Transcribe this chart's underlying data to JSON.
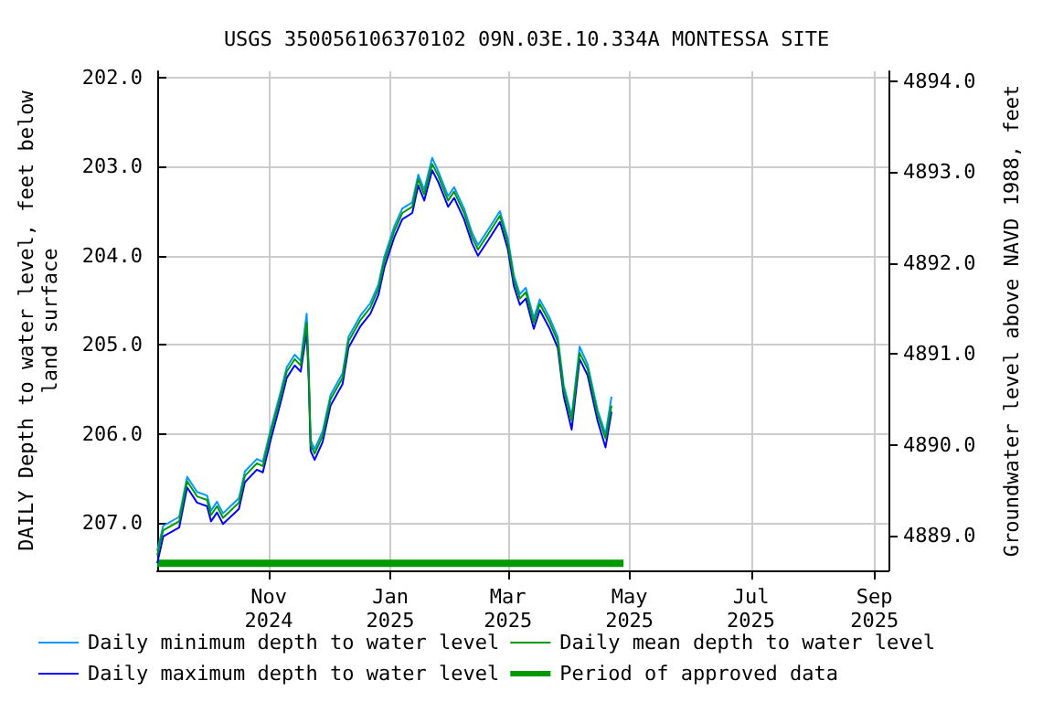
{
  "chart_data": {
    "type": "line",
    "title": "USGS 350056106370102 09N.03E.10.334A MONTESSA SITE",
    "ylabel": "DAILY Depth to water level, feet below\nland surface",
    "y2label": "Groundwater level above NAVD 1988, feet",
    "x": [
      "2024-09-06",
      "2024-09-09",
      "2024-09-17",
      "2024-09-21",
      "2024-09-26",
      "2024-10-01",
      "2024-10-03",
      "2024-10-06",
      "2024-10-09",
      "2024-10-17",
      "2024-10-20",
      "2024-10-26",
      "2024-10-29",
      "2024-11-02",
      "2024-11-07",
      "2024-11-10",
      "2024-11-14",
      "2024-11-17",
      "2024-11-20",
      "2024-11-21",
      "2024-11-22",
      "2024-11-24",
      "2024-11-28",
      "2024-12-02",
      "2024-12-08",
      "2024-12-11",
      "2024-12-17",
      "2024-12-22",
      "2024-12-26",
      "2024-12-29",
      "2025-01-03",
      "2025-01-07",
      "2025-01-12",
      "2025-01-15",
      "2025-01-18",
      "2025-01-22",
      "2025-01-25",
      "2025-01-30",
      "2025-02-02",
      "2025-02-07",
      "2025-02-11",
      "2025-02-14",
      "2025-02-19",
      "2025-02-25",
      "2025-03-01",
      "2025-03-04",
      "2025-03-07",
      "2025-03-10",
      "2025-03-14",
      "2025-03-17",
      "2025-03-22",
      "2025-03-26",
      "2025-03-29",
      "2025-04-02",
      "2025-04-06",
      "2025-04-10",
      "2025-04-15",
      "2025-04-19",
      "2025-04-22"
    ],
    "series": [
      {
        "name": "Daily minimum depth to water level",
        "color": "#0099ff",
        "values": [
          207.31,
          207.03,
          206.93,
          206.48,
          206.65,
          206.69,
          206.86,
          206.76,
          206.89,
          206.72,
          206.42,
          206.28,
          206.31,
          205.94,
          205.52,
          205.25,
          205.11,
          205.18,
          204.65,
          205.25,
          206.07,
          206.17,
          205.97,
          205.56,
          205.32,
          204.91,
          204.67,
          204.53,
          204.32,
          204.01,
          203.67,
          203.47,
          203.4,
          203.09,
          203.26,
          202.9,
          203.05,
          203.33,
          203.23,
          203.47,
          203.74,
          203.88,
          203.71,
          203.5,
          203.81,
          204.22,
          204.43,
          204.36,
          204.7,
          204.49,
          204.7,
          204.91,
          205.45,
          205.8,
          205.02,
          205.22,
          205.73,
          206.0,
          205.58
        ]
      },
      {
        "name": "Daily maximum depth to water level",
        "color": "#0000ff",
        "values": [
          207.45,
          207.15,
          207.05,
          206.6,
          206.77,
          206.81,
          206.98,
          206.88,
          207.01,
          206.84,
          206.54,
          206.4,
          206.43,
          206.06,
          205.64,
          205.37,
          205.23,
          205.3,
          204.85,
          205.37,
          206.19,
          206.29,
          206.09,
          205.68,
          205.44,
          205.03,
          204.79,
          204.65,
          204.44,
          204.13,
          203.79,
          203.59,
          203.52,
          203.21,
          203.38,
          203.04,
          203.17,
          203.45,
          203.35,
          203.59,
          203.86,
          204.0,
          203.83,
          203.62,
          203.93,
          204.34,
          204.55,
          204.48,
          204.82,
          204.61,
          204.82,
          205.03,
          205.57,
          205.95,
          205.16,
          205.34,
          205.85,
          206.15,
          205.75
        ]
      },
      {
        "name": "Daily mean depth to water level",
        "color": "#009900",
        "values": [
          207.36,
          207.08,
          206.98,
          206.53,
          206.7,
          206.74,
          206.91,
          206.81,
          206.94,
          206.77,
          206.47,
          206.33,
          206.36,
          205.99,
          205.57,
          205.3,
          205.16,
          205.23,
          204.75,
          205.3,
          206.12,
          206.22,
          206.02,
          205.61,
          205.37,
          204.96,
          204.72,
          204.58,
          204.37,
          204.06,
          203.72,
          203.52,
          203.45,
          203.14,
          203.31,
          202.97,
          203.1,
          203.38,
          203.28,
          203.52,
          203.79,
          203.93,
          203.76,
          203.55,
          203.86,
          204.27,
          204.48,
          204.41,
          204.75,
          204.54,
          204.75,
          204.96,
          205.5,
          205.85,
          205.09,
          205.27,
          205.78,
          206.05,
          205.68
        ]
      },
      {
        "name": "Period of approved data",
        "color": "#009900",
        "x": [
          "2024-09-06",
          "2025-04-28"
        ],
        "values": [
          207.45,
          207.45
        ]
      }
    ],
    "xlim": [
      "2024-09-06",
      "2025-09-08"
    ],
    "xticks": [
      {
        "value": "2024-11-01",
        "label": "Nov\n2024"
      },
      {
        "value": "2025-01-01",
        "label": "Jan\n2025"
      },
      {
        "value": "2025-03-01",
        "label": "Mar\n2025"
      },
      {
        "value": "2025-05-01",
        "label": "May\n2025"
      },
      {
        "value": "2025-07-01",
        "label": "Jul\n2025"
      },
      {
        "value": "2025-09-01",
        "label": "Sep\n2025"
      }
    ],
    "ylim": [
      207.53,
      201.93
    ],
    "yticks": [
      {
        "value": 202,
        "label": "202.0"
      },
      {
        "value": 203,
        "label": "203.0"
      },
      {
        "value": 204,
        "label": "204.0"
      },
      {
        "value": 205,
        "label": "205.0"
      },
      {
        "value": 206,
        "label": "206.0"
      },
      {
        "value": 207,
        "label": "207.0"
      }
    ],
    "y2lim": [
      4888.62,
      4894.11
    ],
    "y2ticks": [
      {
        "value": 4889,
        "label": "4889.0"
      },
      {
        "value": 4890,
        "label": "4890.0"
      },
      {
        "value": 4891,
        "label": "4891.0"
      },
      {
        "value": 4892,
        "label": "4892.0"
      },
      {
        "value": 4893,
        "label": "4893.0"
      },
      {
        "value": 4894,
        "label": "4894.0"
      }
    ],
    "grid": true,
    "legend": "bottom",
    "marker": "none",
    "line_style": "solid"
  }
}
